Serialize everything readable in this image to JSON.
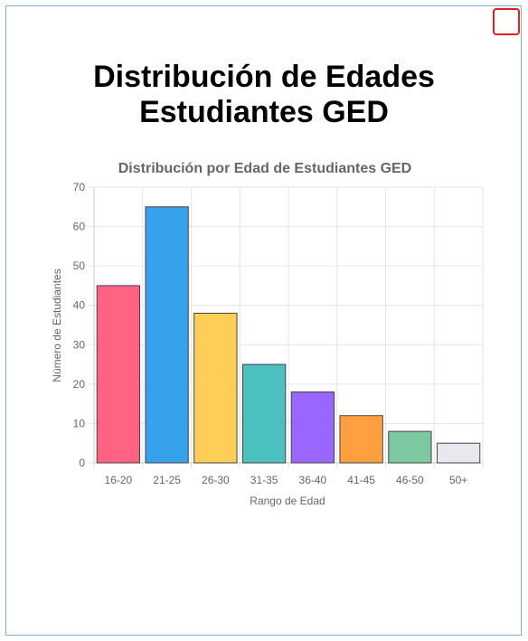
{
  "page": {
    "title_line1": "Distribución de Edades",
    "title_line2": "Estudiantes GED"
  },
  "colors": {
    "bars": [
      "#ff6384",
      "#36a2eb",
      "#ffce56",
      "#4bc0c0",
      "#9966ff",
      "#ff9f40",
      "#7cc8a0",
      "#e7e9ed"
    ],
    "bar_border": "#444444",
    "grid": "#e6e6e6",
    "text": "#666666",
    "frame": "#7fb0dc",
    "close_border": "#e02020"
  },
  "chart_data": {
    "type": "bar",
    "title": "Distribución por Edad de Estudiantes GED",
    "xlabel": "Rango de Edad",
    "ylabel": "Número de Estudiantes",
    "categories": [
      "16-20",
      "21-25",
      "26-30",
      "31-35",
      "36-40",
      "41-45",
      "46-50",
      "50+"
    ],
    "values": [
      45,
      65,
      38,
      25,
      18,
      12,
      8,
      5
    ],
    "ylim": [
      0,
      70
    ],
    "yticks": [
      0,
      10,
      20,
      30,
      40,
      50,
      60,
      70
    ],
    "grid": true,
    "legend": "none"
  }
}
